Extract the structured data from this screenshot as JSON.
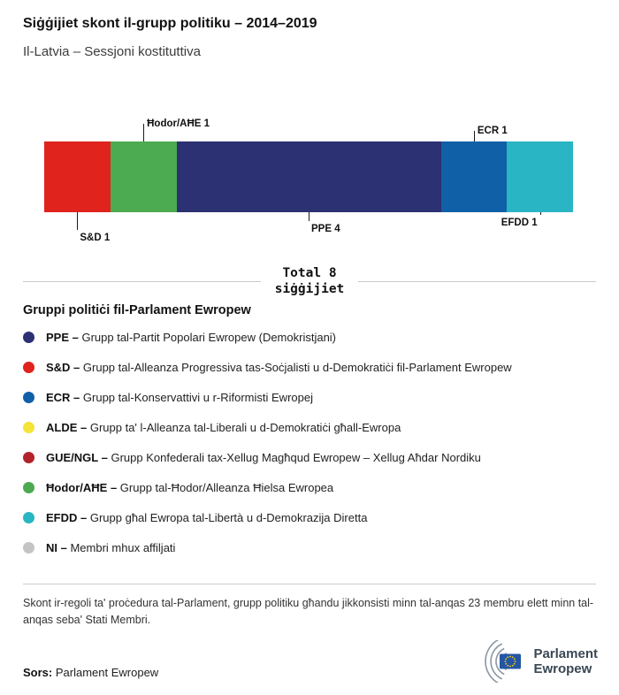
{
  "header": {
    "title": "Siġġijiet skont il-grupp politiku – 2014–2019",
    "subtitle": "Il-Latvia – Sessjoni kostituttiva"
  },
  "chart_data": {
    "type": "bar",
    "variant": "horizontal-stacked",
    "total_seats": 8,
    "total_label_line1": "Total 8",
    "total_label_line2": "siġġijiet",
    "segments": [
      {
        "name": "S&D",
        "value": 1,
        "color": "#e0231c",
        "label_side": "bottom",
        "line_len": 20,
        "label_align": "right"
      },
      {
        "name": "Ħodor/AĦE",
        "value": 1,
        "color": "#4caa50",
        "label_side": "top",
        "line_len": 20,
        "label_align": "right"
      },
      {
        "name": "PPE",
        "value": 4,
        "color": "#2b3172",
        "label_side": "bottom",
        "line_len": 10,
        "label_align": "right"
      },
      {
        "name": "ECR",
        "value": 1,
        "color": "#1060a8",
        "label_side": "top",
        "line_len": 12,
        "label_align": "right"
      },
      {
        "name": "EFDD",
        "value": 1,
        "color": "#29b5c3",
        "label_side": "bottom",
        "line_len": 3,
        "label_align": "left"
      }
    ]
  },
  "legend": {
    "title": "Gruppi politiċi fil-Parlament Ewropew",
    "separator": "–",
    "items": [
      {
        "abbr": "PPE",
        "desc": "Grupp tal-Partit Popolari Ewropew (Demokristjani)",
        "color": "#2b3172"
      },
      {
        "abbr": "S&D",
        "desc": "Grupp tal-Alleanza Progressiva tas-Soċjalisti u d-Demokratiċi fil-Parlament Ewropew",
        "color": "#e0231c"
      },
      {
        "abbr": "ECR",
        "desc": "Grupp tal-Konservattivi u r-Riformisti Ewropej",
        "color": "#1060a8"
      },
      {
        "abbr": "ALDE",
        "desc": "Grupp ta' l-Alleanza tal-Liberali u d-Demokratiċi għall-Ewropa",
        "color": "#f5e437"
      },
      {
        "abbr": "GUE/NGL",
        "desc": "Grupp Konfederali tax-Xellug Magħqud Ewropew – Xellug Aħdar Nordiku",
        "color": "#b3232a"
      },
      {
        "abbr": "Ħodor/AĦE",
        "desc": "Grupp tal-Ħodor/Alleanza Ħielsa Ewropea",
        "color": "#4caa50"
      },
      {
        "abbr": "EFDD",
        "desc": "Grupp għal Ewropa tal-Libertà u d-Demokrazija Diretta",
        "color": "#29b5c3"
      },
      {
        "abbr": "NI",
        "desc": "Membri mhux affiljati",
        "color": "#c4c4c4"
      }
    ]
  },
  "footer": {
    "note": "Skont ir-regoli ta' proċedura tal-Parlament, grupp politiku għandu jikkonsisti minn tal-anqas 23 membru elett minn tal-anqas seba' Stati Membri.",
    "source_label": "Sors:",
    "source_text": "Parlament Ewropew",
    "logo_line1": "Parlament",
    "logo_line2": "Ewropew"
  }
}
